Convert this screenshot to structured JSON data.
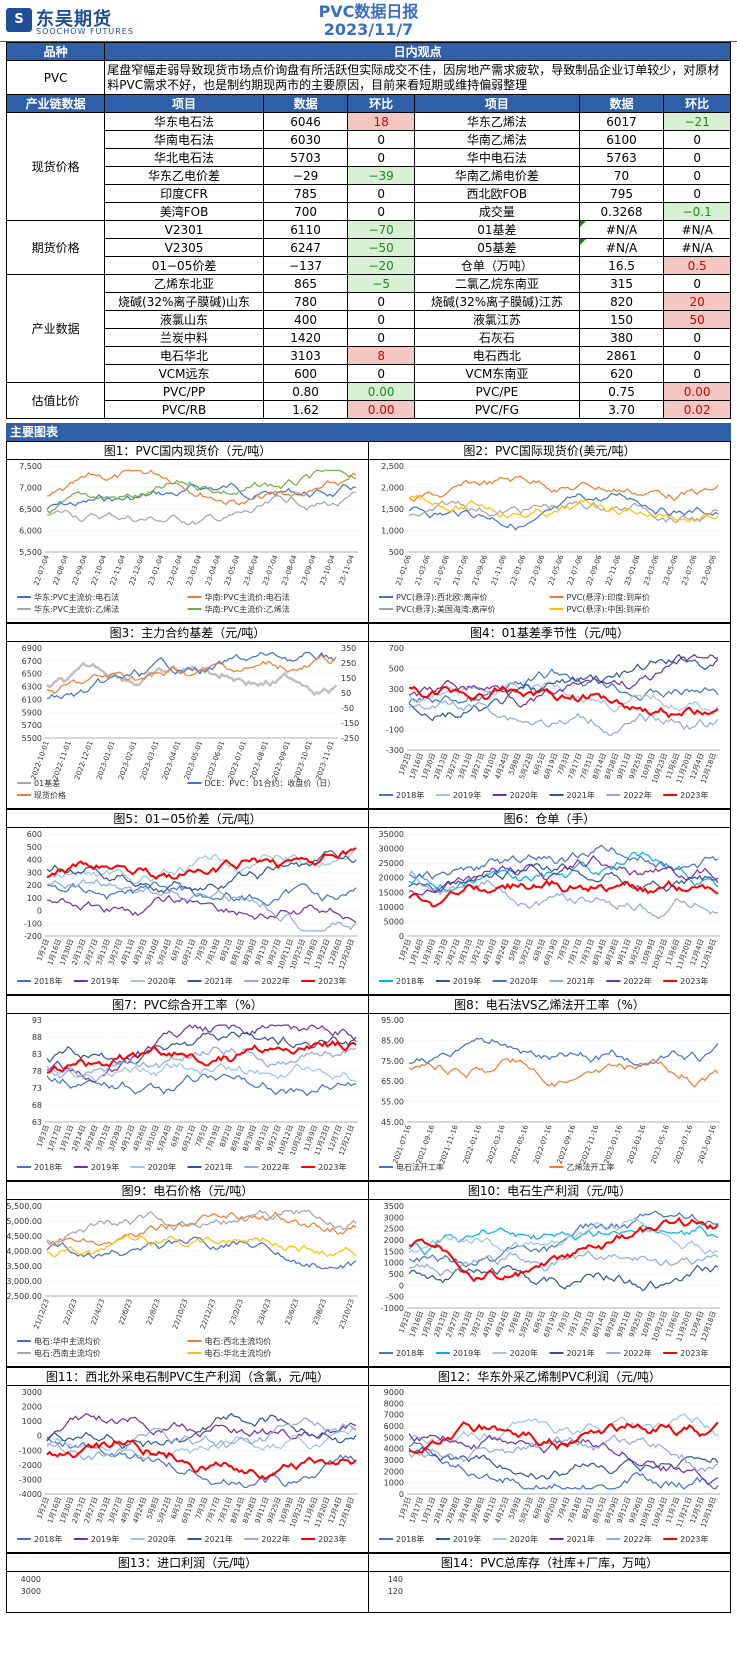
{
  "header": {
    "logo_cn": "东吴期货",
    "logo_en": "SOOCHOW FUTURES",
    "title": "PVC数据日报",
    "date": "2023/11/7"
  },
  "summary": {
    "col1": "品种",
    "col2": "日内观点",
    "product": "PVC",
    "view": "尾盘窄幅走弱导致现货市场点价询盘有所活跃但实际成交不佳，因房地产需求疲软，导致制品企业订单较少，对原材料PVC需求不好，也是制约期现两市的主要原因，目前来看短期或维持偏弱整理"
  },
  "table_header": [
    "产业链数据",
    "项目",
    "数据",
    "环比",
    "项目",
    "数据",
    "环比"
  ],
  "groups": [
    {
      "name": "现货价格",
      "rows": [
        {
          "l": "华东电石法",
          "lv": "6046",
          "lc": "18",
          "lt": "pos",
          "r": "华东乙烯法",
          "rv": "6017",
          "rc": "−21",
          "rt": "neg"
        },
        {
          "l": "华南电石法",
          "lv": "6030",
          "lc": "0",
          "lt": "",
          "r": "华南乙烯法",
          "rv": "6100",
          "rc": "0",
          "rt": ""
        },
        {
          "l": "华北电石法",
          "lv": "5703",
          "lc": "0",
          "lt": "",
          "r": "华中电石法",
          "rv": "5763",
          "rc": "0",
          "rt": ""
        },
        {
          "l": "华东乙电价差",
          "lv": "−29",
          "lc": "−39",
          "lt": "neg",
          "r": "华南乙烯电价差",
          "rv": "70",
          "rc": "0",
          "rt": ""
        },
        {
          "l": "印度CFR",
          "lv": "785",
          "lc": "0",
          "lt": "",
          "r": "西北欧FOB",
          "rv": "795",
          "rc": "0",
          "rt": ""
        },
        {
          "l": "美湾FOB",
          "lv": "700",
          "lc": "0",
          "lt": "",
          "r": "成交量",
          "rv": "0.3268",
          "rc": "−0.1",
          "rt": "neg"
        }
      ]
    },
    {
      "name": "期货价格",
      "rows": [
        {
          "l": "V2301",
          "lv": "6110",
          "lc": "−70",
          "lt": "neg",
          "r": "01基差",
          "rv": "#N/A",
          "rc": "#N/A",
          "rt": "",
          "flag": true
        },
        {
          "l": "V2305",
          "lv": "6247",
          "lc": "−50",
          "lt": "neg",
          "r": "05基差",
          "rv": "#N/A",
          "rc": "#N/A",
          "rt": "",
          "flag": true
        },
        {
          "l": "01−05价差",
          "lv": "−137",
          "lc": "−20",
          "lt": "neg",
          "r": "仓单（万吨）",
          "rv": "16.5",
          "rc": "0.5",
          "rt": "pos"
        }
      ]
    },
    {
      "name": "产业数据",
      "rows": [
        {
          "l": "乙烯东北亚",
          "lv": "865",
          "lc": "−5",
          "lt": "neg",
          "r": "二氯乙烷东南亚",
          "rv": "315",
          "rc": "0",
          "rt": ""
        },
        {
          "l": "烧碱(32%离子膜碱)山东",
          "lv": "780",
          "lc": "0",
          "lt": "",
          "r": "烧碱(32%离子膜碱)江苏",
          "rv": "820",
          "rc": "20",
          "rt": "pos"
        },
        {
          "l": "液氯山东",
          "lv": "400",
          "lc": "0",
          "lt": "",
          "r": "液氯江苏",
          "rv": "150",
          "rc": "50",
          "rt": "pos"
        },
        {
          "l": "兰炭中料",
          "lv": "1420",
          "lc": "0",
          "lt": "",
          "r": "石灰石",
          "rv": "380",
          "rc": "0",
          "rt": ""
        },
        {
          "l": "电石华北",
          "lv": "3103",
          "lc": "8",
          "lt": "pos",
          "r": "电石西北",
          "rv": "2861",
          "rc": "0",
          "rt": ""
        },
        {
          "l": "VCM远东",
          "lv": "600",
          "lc": "0",
          "lt": "",
          "r": "VCM东南亚",
          "rv": "620",
          "rc": "0",
          "rt": ""
        }
      ]
    },
    {
      "name": "估值比价",
      "rows": [
        {
          "l": "PVC/PP",
          "lv": "0.80",
          "lc": "0.00",
          "lt": "neg",
          "r": "PVC/PE",
          "rv": "0.75",
          "rc": "0.00",
          "rt": "pos"
        },
        {
          "l": "PVC/RB",
          "lv": "1.62",
          "lc": "0.00",
          "lt": "pos",
          "r": "PVC/FG",
          "rv": "3.70",
          "rc": "0.02",
          "rt": "pos"
        }
      ]
    }
  ],
  "charts_section": "主要图表",
  "charts": [
    {
      "caption": "图1：PVC国内现货价（元/吨）",
      "yticks": [
        "7,500",
        "7,000",
        "6,500",
        "6,000",
        "5,500"
      ],
      "xticks": [
        "22-07-04",
        "22-08-04",
        "22-09-04",
        "22-10-04",
        "22-11-04",
        "22-12-04",
        "23-01-04",
        "23-02-04",
        "23-03-04",
        "23-04-04",
        "23-05-04",
        "23-06-04",
        "23-07-04",
        "23-08-04",
        "23-09-04",
        "23-10-04",
        "23-11-04"
      ],
      "legend": [
        "华东:PVC主流价:电石法",
        "华南:PVC主流价:电石法",
        "华东:PVC主流价:乙烯法",
        "华南:PVC主流价:乙烯法"
      ],
      "colors": [
        "#4472c4",
        "#ed7d31",
        "#a5a5a5",
        "#70ad47"
      ]
    },
    {
      "caption": "图2：PVC国际现货价(美元/吨）",
      "yticks": [
        "2,500",
        "2,000",
        "1,500",
        "1,000",
        "500"
      ],
      "xticks": [
        "21-01-06",
        "21-03-06",
        "21-05-06",
        "21-07-06",
        "21-09-06",
        "21-11-06",
        "22-01-06",
        "22-03-06",
        "22-05-06",
        "22-07-06",
        "22-09-06",
        "22-11-06",
        "23-01-06",
        "23-03-06",
        "23-05-06",
        "23-07-06",
        "23-09-06"
      ],
      "legend": [
        "PVC(悬浮):西北欧:离岸价",
        "PVC(悬浮):印度:到岸价",
        "PVC(悬浮):美国海湾:离岸价",
        "PVC(悬浮):中国:到岸价"
      ],
      "colors": [
        "#4472c4",
        "#ed7d31",
        "#a5a5a5",
        "#ffc000"
      ]
    },
    {
      "caption": "图3：主力合约基差（元/吨）",
      "yticks": [
        "6900",
        "6700",
        "6500",
        "6300",
        "6100",
        "5900",
        "5700",
        "5500"
      ],
      "y2ticks": [
        "350",
        "250",
        "150",
        "50",
        "-50",
        "-150",
        "-250"
      ],
      "xticks": [
        "2022-10-01",
        "2022-11-01",
        "2022-12-01",
        "2023-01-01",
        "2023-02-01",
        "2023-03-01",
        "2023-04-01",
        "2023-05-01",
        "2023-06-01",
        "2023-07-01",
        "2023-08-01",
        "2023-09-01",
        "2023-10-01",
        "2023-11-01"
      ],
      "legend": [
        "01基差",
        "DCE：PVC：01合约：收盘价（日）",
        "现货价格"
      ],
      "colors": [
        "#a5a5a5",
        "#4472c4",
        "#ed7d31"
      ]
    },
    {
      "caption": "图4：01基差季节性（元/吨）",
      "yticks": [
        "700",
        "500",
        "300",
        "100",
        "-100",
        "-300"
      ],
      "xticks": [
        "1月2日",
        "1月16日",
        "1月30日",
        "2月13日",
        "2月27日",
        "3月13日",
        "3月27日",
        "4月10日",
        "4月24日",
        "5月8日",
        "5月22日",
        "6月5日",
        "6月19日",
        "7月3日",
        "7月17日",
        "7月31日",
        "8月14日",
        "8月28日",
        "9月11日",
        "9月25日",
        "10月9日",
        "10月23日",
        "11月6日",
        "11月20日",
        "12月4日",
        "12月18日"
      ],
      "legend": [
        "2018年",
        "2019年",
        "2020年",
        "2021年",
        "2022年",
        "2023年"
      ],
      "colors": [
        "#4472c4",
        "#9dc3e6",
        "#7030a0",
        "#2f5597",
        "#8faadc",
        "#ff0000"
      ]
    },
    {
      "caption": "图5：01−05价差（元/吨）",
      "yticks": [
        "600",
        "500",
        "400",
        "300",
        "200",
        "100",
        "0",
        "-100",
        "-200"
      ],
      "xticks": [
        "1月2日",
        "1月16日",
        "1月30日",
        "2月13日",
        "2月27日",
        "3月13日",
        "3月27日",
        "4月11日",
        "4月25日",
        "5月10日",
        "5月24日",
        "6月7日",
        "6月21日",
        "7月5日",
        "7月19日",
        "8月2日",
        "8月16日",
        "8月30日",
        "9月13日",
        "9月27日",
        "10月11日",
        "10月25日",
        "11月8日",
        "11月22日",
        "12月6日",
        "12月20日"
      ],
      "legend": [
        "2018年",
        "2019年",
        "2020年",
        "2021年",
        "2022年",
        "2023年"
      ],
      "colors": [
        "#4472c4",
        "#7030a0",
        "#9dc3e6",
        "#2f5597",
        "#8faadc",
        "#ff0000"
      ]
    },
    {
      "caption": "图6：仓单（手）",
      "yticks": [
        "35000",
        "30000",
        "25000",
        "20000",
        "15000",
        "10000",
        "5000",
        "0"
      ],
      "xticks": [
        "1月2日",
        "1月16日",
        "1月30日",
        "2月13日",
        "2月27日",
        "3月13日",
        "3月27日",
        "4月10日",
        "4月24日",
        "5月8日",
        "5月22日",
        "6月5日",
        "6月19日",
        "7月3日",
        "7月17日",
        "7月31日",
        "8月14日",
        "8月28日",
        "9月11日",
        "9月25日",
        "10月9日",
        "10月23日",
        "11月6日",
        "11月20日",
        "12月4日",
        "12月18日"
      ],
      "legend": [
        "2018年",
        "2019年",
        "2020年",
        "2021年",
        "2022年",
        "2023年"
      ],
      "colors": [
        "#00b0f0",
        "#2f5597",
        "#4472c4",
        "#8faadc",
        "#7030a0",
        "#ff0000"
      ]
    },
    {
      "caption": "图7：PVC综合开工率（%）",
      "yticks": [
        "93",
        "88",
        "83",
        "78",
        "73",
        "68",
        "63"
      ],
      "xticks": [
        "1月3日",
        "1月17日",
        "1月31日",
        "2月14日",
        "2月28日",
        "3月15日",
        "3月29日",
        "4月12日",
        "4月26日",
        "5月10日",
        "5月24日",
        "6月7日",
        "6月21日",
        "7月5日",
        "7月19日",
        "8月2日",
        "8月16日",
        "8月30日",
        "9月13日",
        "9月27日",
        "10月12日",
        "10月26日",
        "11月9日",
        "11月23日",
        "12月7日",
        "12月21日"
      ],
      "legend": [
        "2018年",
        "2019年",
        "2020年",
        "2021年",
        "2022年",
        "2023年"
      ],
      "colors": [
        "#4472c4",
        "#7030a0",
        "#9dc3e6",
        "#2f5597",
        "#8faadc",
        "#ff0000"
      ]
    },
    {
      "caption": "图8：电石法VS乙烯法开工率（%）",
      "yticks": [
        "95.00",
        "85.00",
        "75.00",
        "65.00",
        "55.00",
        "45.00"
      ],
      "xticks": [
        "2021-07-16",
        "2021-09-16",
        "2021-11-16",
        "2022-01-16",
        "2022-03-16",
        "2022-05-16",
        "2022-07-16",
        "2022-09-16",
        "2022-11-16",
        "2023-01-16",
        "2023-03-16",
        "2023-05-16",
        "2023-07-16",
        "2023-09-16"
      ],
      "legend": [
        "电石法开工率",
        "乙烯法开工率"
      ],
      "colors": [
        "#4472c4",
        "#ed7d31"
      ]
    },
    {
      "caption": "图9：电石价格（元/吨）",
      "yticks": [
        "5,500.00",
        "5,000.00",
        "4,500.00",
        "4,000.00",
        "3,500.00",
        "3,000.00",
        "2,500.00"
      ],
      "xticks": [
        "21/12/23",
        "22/2/23",
        "22/4/23",
        "22/6/23",
        "22/8/23",
        "22/10/23",
        "22/12/23",
        "23/2/23",
        "23/4/23",
        "23/6/23",
        "23/8/23",
        "23/10/23"
      ],
      "legend": [
        "电石:华中主流均价",
        "电石:西北主流均价",
        "电石:西南主流均价",
        "电石:华北主流均价"
      ],
      "colors": [
        "#4472c4",
        "#ed7d31",
        "#a5a5a5",
        "#ffc000"
      ]
    },
    {
      "caption": "图10：电石生产利润（元/吨）",
      "yticks": [
        "3500",
        "3000",
        "2500",
        "2000",
        "1500",
        "1000",
        "500",
        "0",
        "-500",
        "-1000"
      ],
      "xticks": [
        "1月2日",
        "1月16日",
        "1月30日",
        "2月13日",
        "2月27日",
        "3月13日",
        "3月27日",
        "4月10日",
        "4月24日",
        "5月8日",
        "5月22日",
        "6月5日",
        "6月19日",
        "7月3日",
        "7月17日",
        "7月31日",
        "8月14日",
        "8月28日",
        "9月11日",
        "9月25日",
        "10月9日",
        "10月23日",
        "11月6日",
        "11月20日",
        "12月4日",
        "12月18日"
      ],
      "legend": [
        "2018年",
        "2019年",
        "2020年",
        "2021年",
        "2022年",
        "2023年"
      ],
      "colors": [
        "#4472c4",
        "#00b0f0",
        "#9dc3e6",
        "#2f5597",
        "#8faadc",
        "#ff0000"
      ]
    },
    {
      "caption": "图11：西北外采电石制PVC生产利润（含氯，元/吨）",
      "yticks": [
        "3000",
        "2000",
        "1000",
        "0",
        "-1000",
        "-2000",
        "-3000",
        "-4000"
      ],
      "xticks": [
        "1月2日",
        "1月16日",
        "1月30日",
        "2月13日",
        "2月27日",
        "3月13日",
        "3月27日",
        "4月10日",
        "4月24日",
        "5月8日",
        "5月22日",
        "6月5日",
        "6月19日",
        "7月3日",
        "7月17日",
        "7月31日",
        "8月14日",
        "8月28日",
        "9月11日",
        "9月25日",
        "10月9日",
        "10月23日",
        "11月6日",
        "11月20日",
        "12月4日",
        "12月18日"
      ],
      "legend": [
        "2018年",
        "2019年",
        "2020年",
        "2021年",
        "2022年",
        "2023年"
      ],
      "colors": [
        "#4472c4",
        "#7030a0",
        "#9dc3e6",
        "#2f5597",
        "#8faadc",
        "#ff0000"
      ]
    },
    {
      "caption": "图12：华东外采乙烯制PVC利润（元/吨）",
      "yticks": [
        "9000",
        "8000",
        "7000",
        "6000",
        "5000",
        "4000",
        "3000",
        "2000",
        "1000",
        "0"
      ],
      "xticks": [
        "1月3日",
        "1月17日",
        "1月31日",
        "2月14日",
        "2月28日",
        "3月14日",
        "3月28日",
        "4月11日",
        "4月25日",
        "5月9日",
        "5月23日",
        "6月6日",
        "6月20日",
        "7月4日",
        "7月18日",
        "8月1日",
        "8月15日",
        "8月29日",
        "9月12日",
        "9月26日",
        "10月10日",
        "10月24日",
        "11月7日",
        "11月21日",
        "12月5日",
        "12月19日"
      ],
      "legend": [
        "2018年",
        "2019年",
        "2020年",
        "2021年",
        "2022年",
        "2023年"
      ],
      "colors": [
        "#4472c4",
        "#2f5597",
        "#9dc3e6",
        "#7030a0",
        "#8faadc",
        "#ff0000"
      ]
    }
  ],
  "partial": [
    {
      "caption": "图13：进口利润（元/吨）",
      "yticks": [
        "4000",
        "3000"
      ]
    },
    {
      "caption": "图14：PVC总库存（社库+厂库，万吨）",
      "yticks": [
        "140",
        "120"
      ]
    }
  ]
}
